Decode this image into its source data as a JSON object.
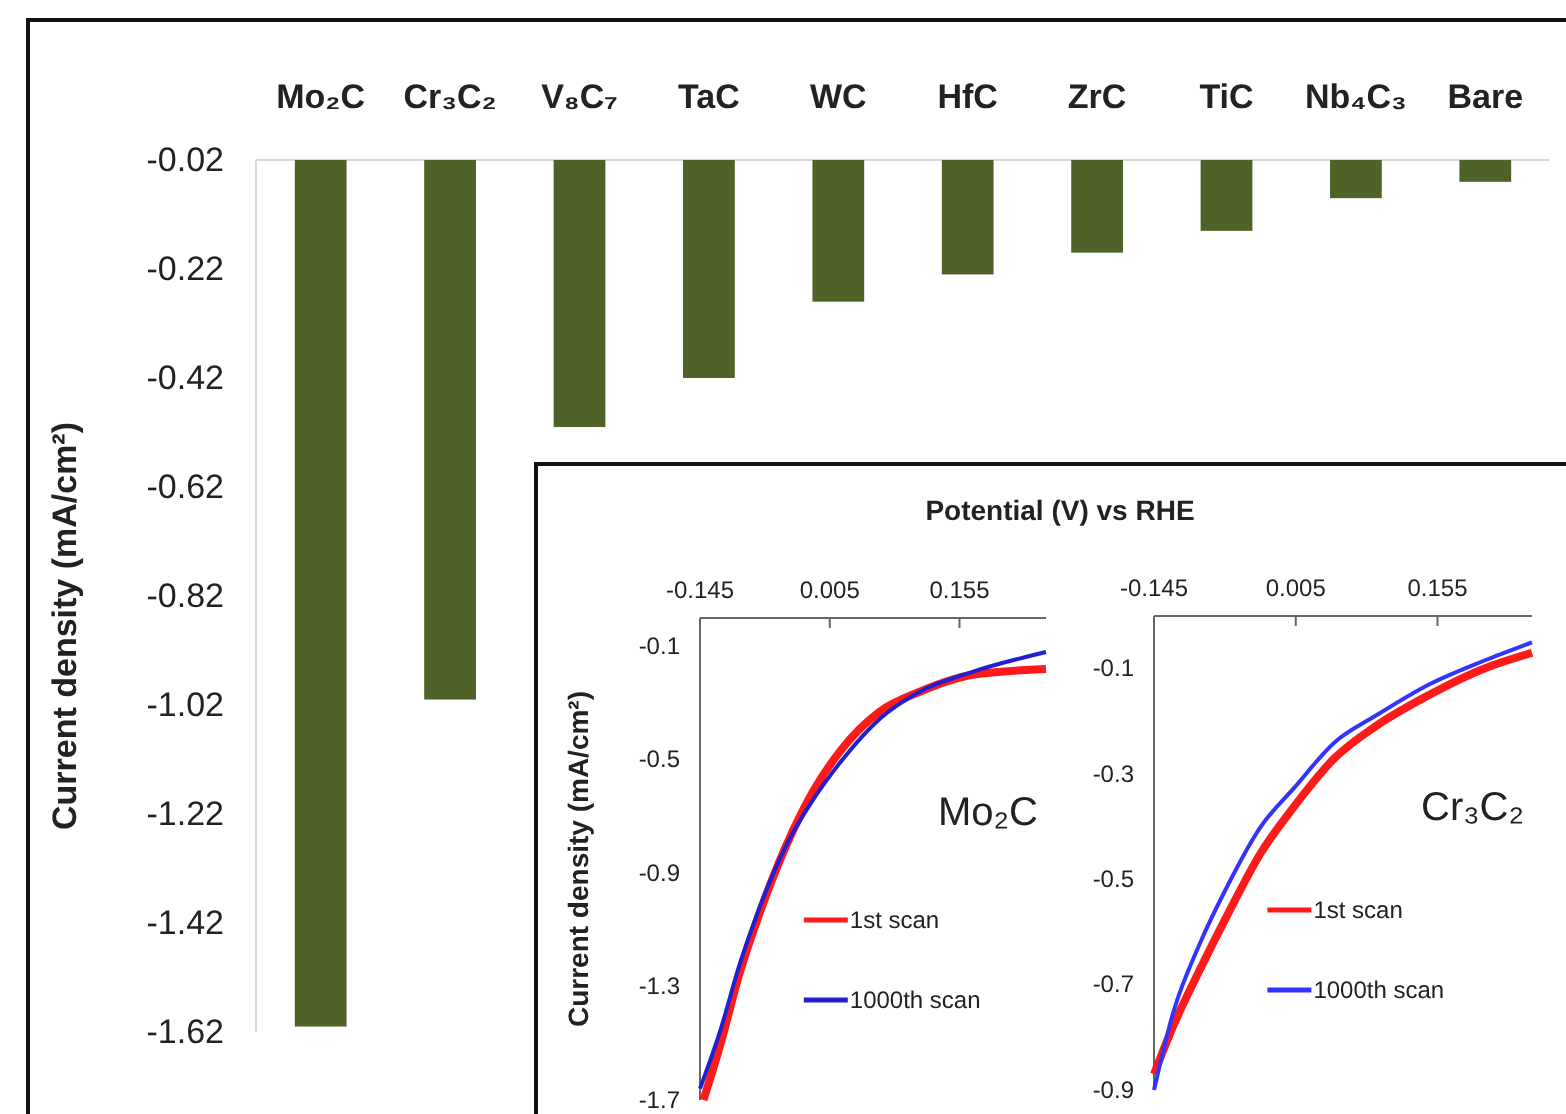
{
  "chart_data": [
    {
      "type": "bar",
      "ylabel": "Current density (mA/cm²)",
      "categories": [
        "Mo₂C",
        "Cr₃C₂",
        "V₈C₇",
        "TaC",
        "WC",
        "HfC",
        "ZrC",
        "TiC",
        "Nb₄C₃",
        "Bare"
      ],
      "values": [
        -1.61,
        -1.01,
        -0.51,
        -0.42,
        -0.28,
        -0.23,
        -0.19,
        -0.15,
        -0.09,
        -0.06
      ],
      "color": "#4f6228",
      "ylim": [
        -1.62,
        -0.02
      ],
      "yticks": [
        -0.02,
        -0.22,
        -0.42,
        -0.62,
        -0.82,
        -1.02,
        -1.22,
        -1.42,
        -1.62
      ],
      "grid": false
    },
    {
      "type": "line",
      "xlabel": "Potential (V) vs RHE",
      "ylabel": "Current density (mA/cm²)",
      "annotations": [
        "Mo₂C"
      ],
      "xlim": [
        -0.145,
        0.255
      ],
      "xticks": [
        -0.145,
        0.005,
        0.155
      ],
      "ylim": [
        -1.7,
        0
      ],
      "yticks": [
        -0.1,
        -0.5,
        -0.9,
        -1.3,
        -1.7
      ],
      "legend": "bottom right",
      "marker": "none",
      "line_style": "solid",
      "series": [
        {
          "name": "1st scan",
          "color": "#ff1a1a",
          "x": [
            -0.141,
            -0.122,
            -0.099,
            -0.076,
            -0.045,
            -0.014,
            0.017,
            0.063,
            0.109,
            0.17,
            0.255
          ],
          "values": [
            -1.7,
            -1.51,
            -1.25,
            -1.04,
            -0.8,
            -0.61,
            -0.47,
            -0.33,
            -0.26,
            -0.2,
            -0.18
          ]
        },
        {
          "name": "1000th scan",
          "color": "#2020d0",
          "x": [
            -0.145,
            -0.122,
            -0.099,
            -0.076,
            -0.045,
            -0.014,
            0.017,
            0.063,
            0.109,
            0.17,
            0.255
          ],
          "values": [
            -1.66,
            -1.46,
            -1.22,
            -1.02,
            -0.8,
            -0.64,
            -0.51,
            -0.355,
            -0.26,
            -0.19,
            -0.12
          ]
        }
      ]
    },
    {
      "type": "line",
      "annotations": [
        "Cr₃C₂"
      ],
      "xlim": [
        -0.145,
        0.255
      ],
      "xticks": [
        -0.145,
        0.005,
        0.155
      ],
      "ylim": [
        -0.9,
        0
      ],
      "yticks": [
        -0.1,
        -0.3,
        -0.5,
        -0.7,
        -0.9
      ],
      "legend": "bottom right",
      "marker": "none",
      "line_style": "solid",
      "series": [
        {
          "name": "1st scan",
          "color": "#ff1a1a",
          "x": [
            -0.145,
            -0.125,
            -0.096,
            -0.068,
            -0.032,
            0.004,
            0.046,
            0.089,
            0.146,
            0.204,
            0.255
          ],
          "values": [
            -0.87,
            -0.78,
            -0.67,
            -0.57,
            -0.45,
            -0.36,
            -0.27,
            -0.21,
            -0.15,
            -0.1,
            -0.07
          ]
        },
        {
          "name": "1000th scan",
          "color": "#3333ff",
          "x": [
            -0.145,
            -0.125,
            -0.096,
            -0.068,
            -0.032,
            0.004,
            0.046,
            0.089,
            0.146,
            0.204,
            0.255
          ],
          "values": [
            -0.9,
            -0.755,
            -0.62,
            -0.515,
            -0.4,
            -0.325,
            -0.24,
            -0.19,
            -0.13,
            -0.085,
            -0.05
          ]
        }
      ]
    }
  ]
}
